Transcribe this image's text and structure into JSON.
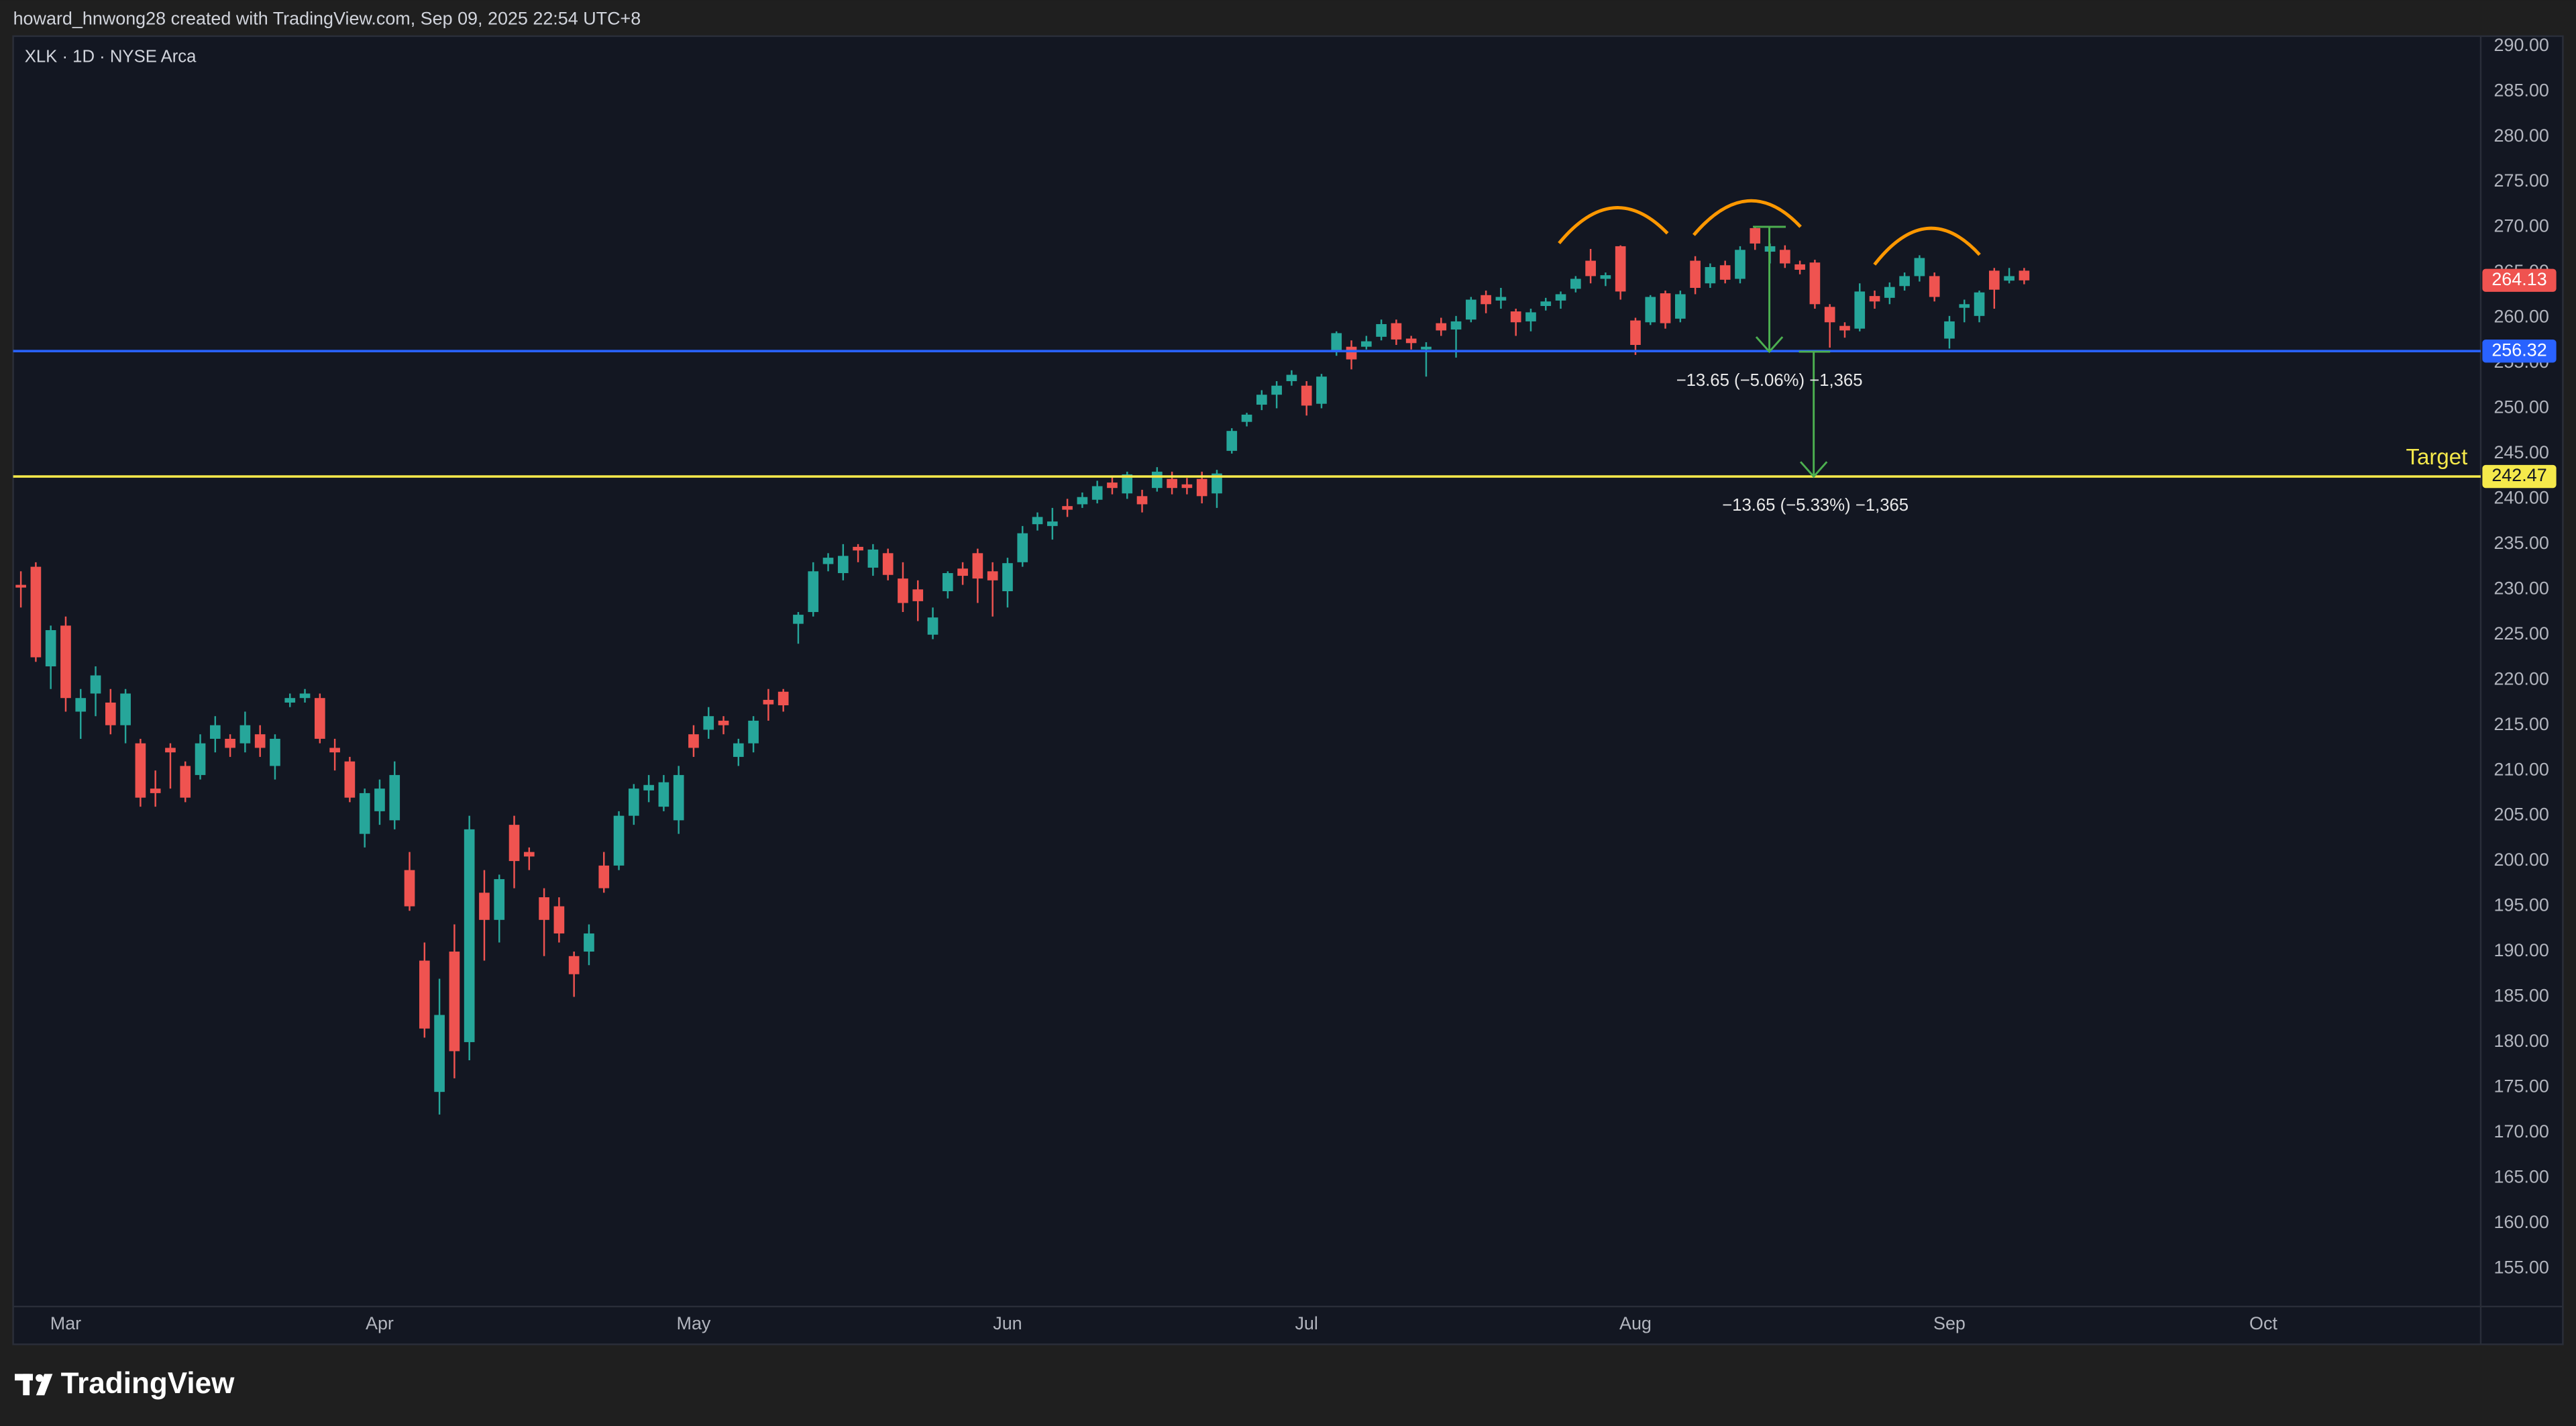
{
  "header": {
    "attribution": "howard_hnwong28 created with TradingView.com, Sep 09, 2025 22:54 UTC+8"
  },
  "footer": {
    "logo": "TradingView"
  },
  "chart_data": {
    "type": "candlestick",
    "symbol": "XLK · 1D · NYSE Arca",
    "up_color": "#26a69a",
    "down_color": "#ef5350",
    "categories": [
      null,
      null,
      null,
      "Mar",
      null,
      null,
      null,
      null,
      null,
      null,
      null,
      null,
      null,
      null,
      null,
      null,
      null,
      null,
      null,
      null,
      null,
      null,
      null,
      null,
      "Apr",
      null,
      null,
      null,
      null,
      null,
      null,
      null,
      null,
      null,
      null,
      null,
      null,
      null,
      null,
      null,
      null,
      null,
      null,
      null,
      null,
      "May",
      null,
      null,
      null,
      null,
      null,
      null,
      null,
      null,
      null,
      null,
      null,
      null,
      null,
      null,
      null,
      null,
      null,
      null,
      null,
      null,
      "Jun",
      null,
      null,
      null,
      null,
      null,
      null,
      null,
      null,
      null,
      null,
      null,
      null,
      null,
      null,
      null,
      null,
      null,
      null,
      null,
      "Jul",
      null,
      null,
      null,
      null,
      null,
      null,
      null,
      null,
      null,
      null,
      null,
      null,
      null,
      null,
      null,
      null,
      null,
      null,
      null,
      null,
      null,
      "Aug",
      null,
      null,
      null,
      null,
      null,
      null,
      null,
      null,
      null,
      null,
      null,
      null,
      null,
      null,
      null,
      null,
      null,
      null,
      null,
      null,
      "Sep",
      null,
      null,
      null,
      null,
      null,
      null,
      null,
      null,
      null,
      null,
      null,
      null,
      null,
      null,
      null,
      null,
      null,
      null,
      null,
      null,
      "Oct"
    ],
    "open": [
      230.5,
      232.5,
      221.5,
      226,
      216.5,
      218.5,
      217.5,
      215,
      213,
      208,
      212.5,
      210.5,
      209.5,
      213.5,
      213.5,
      213,
      214,
      210.5,
      217.5,
      218,
      218,
      212.5,
      211,
      203,
      205.5,
      204.5,
      199,
      189,
      174.5,
      190,
      180,
      196.5,
      193.5,
      204,
      201,
      196,
      195,
      189.5,
      190,
      199.5,
      199.5,
      205,
      207.8,
      206,
      204.5,
      214,
      214.5,
      215.5,
      211.5,
      213,
      217.8,
      218.7,
      226.2,
      227.5,
      232.8,
      231.8,
      234.7,
      232.4,
      234,
      231.2,
      230,
      225,
      229.8,
      232.3,
      234,
      232,
      229.8,
      233,
      237.2,
      237,
      239.2,
      239.4,
      239.9,
      241.8,
      240.6,
      240.3,
      241.2,
      242.2,
      241.6,
      242.2,
      240.6,
      245.3,
      248.5,
      250.4,
      251.5,
      253,
      252.5,
      250.5,
      256.2,
      256.8,
      256.8,
      257.9,
      259.4,
      257.7,
      256.5,
      259.4,
      258.7,
      259.8,
      262.5,
      261.9,
      260.7,
      259.6,
      261.3,
      261.9,
      263.2,
      266.3,
      264.3,
      267.9,
      259.7,
      259.5,
      262.7,
      259.9,
      266.3,
      263.8,
      265.8,
      264.3,
      269.9,
      267.3,
      267.5,
      265.9,
      266.1,
      261.2,
      259.1,
      258.8,
      262.4,
      262.2,
      263.5,
      264.6,
      264.6,
      257.7,
      261.1,
      260.2,
      265.2,
      264.1,
      265.2,
      null,
      null,
      null,
      null,
      null,
      null,
      null,
      null,
      null,
      null,
      null,
      null,
      null,
      null,
      null,
      null
    ],
    "high": [
      232,
      233,
      226,
      227,
      219,
      221.5,
      219,
      219,
      213.5,
      210,
      213,
      211,
      214,
      216,
      214,
      216.5,
      215,
      214,
      218.5,
      219,
      218.5,
      213.5,
      211.5,
      208,
      209,
      211,
      201,
      191,
      187,
      193,
      205,
      199,
      198.5,
      205,
      201.5,
      197,
      196,
      190,
      193,
      201,
      205.5,
      208.5,
      209.5,
      209.5,
      210.5,
      215,
      217,
      216,
      213.5,
      216,
      219,
      219,
      227.5,
      233,
      234,
      235,
      235,
      235,
      234.5,
      233,
      231,
      228,
      232,
      233,
      234.5,
      233,
      233.5,
      237,
      238.5,
      239,
      240,
      240.7,
      242,
      242.5,
      243,
      241,
      243.5,
      243,
      242.3,
      243,
      243.2,
      247.8,
      249.5,
      252,
      253,
      254.2,
      253,
      253.8,
      258.5,
      257.5,
      258,
      259.8,
      259.8,
      258,
      257.3,
      260,
      260.2,
      262.3,
      263,
      263.3,
      261,
      261,
      262.2,
      262.9,
      264.6,
      267.6,
      265,
      268,
      260,
      262.5,
      263,
      263,
      266.8,
      266,
      266.3,
      267.9,
      270,
      268.2,
      268,
      266.3,
      266.4,
      261.5,
      259.5,
      263.8,
      263,
      263.9,
      265,
      266.9,
      265,
      260.2,
      262,
      263,
      265.5,
      265.5,
      265.5,
      null,
      null,
      null,
      null,
      null,
      null,
      null,
      null,
      null,
      null,
      null,
      null,
      null,
      null,
      null,
      null
    ],
    "low": [
      228,
      222,
      219,
      216.5,
      213.5,
      216,
      214,
      213,
      206,
      206,
      208,
      206.5,
      209,
      212,
      211.5,
      212,
      211.5,
      209,
      217,
      217.5,
      213,
      210,
      206.5,
      201.5,
      204,
      203.5,
      194.5,
      180.5,
      172,
      176,
      178,
      189,
      191,
      197,
      199,
      189.5,
      191,
      185,
      188.5,
      196.5,
      199,
      204,
      206.5,
      205.5,
      203,
      211.5,
      213.5,
      214,
      210.5,
      212,
      215.5,
      216.5,
      224,
      227,
      232,
      231,
      233,
      231.5,
      231,
      227.5,
      226.5,
      224.5,
      229,
      230.5,
      228.5,
      227,
      228,
      232.5,
      236.5,
      235.5,
      238,
      239,
      239.5,
      240.5,
      240,
      238.5,
      240.8,
      240.5,
      240.5,
      239.5,
      239,
      245,
      248,
      249.8,
      250,
      252.5,
      249.2,
      250,
      255.8,
      254.3,
      256.5,
      257.5,
      257,
      256.5,
      253.5,
      258,
      255.6,
      259.5,
      260.5,
      261,
      258,
      258.5,
      260.8,
      261,
      262.8,
      263.8,
      263.5,
      262,
      255.9,
      259.2,
      258.8,
      259.5,
      262.6,
      263.3,
      263.8,
      263.8,
      267.5,
      266,
      265.5,
      264.8,
      261,
      256.7,
      257.8,
      258.5,
      261,
      261.5,
      263,
      264,
      261.8,
      256.6,
      259.5,
      259.5,
      261,
      263.8,
      263.7,
      null,
      null,
      null,
      null,
      null,
      null,
      null,
      null,
      null,
      null,
      null,
      null,
      null,
      null,
      null,
      null
    ],
    "close": [
      230.2,
      222.5,
      225.5,
      218,
      218,
      220.5,
      215,
      218.5,
      207,
      207.5,
      212,
      207,
      213,
      215,
      212.5,
      215,
      212.5,
      213.5,
      218,
      218.5,
      213.5,
      212,
      207,
      207.5,
      208,
      209.5,
      195,
      181.5,
      183,
      179,
      203.5,
      193.5,
      198,
      200,
      200.5,
      193.5,
      192,
      187.5,
      192,
      197,
      205,
      208,
      208.4,
      208.7,
      209.5,
      212.5,
      216,
      215,
      213,
      215.5,
      217.3,
      217.2,
      227.2,
      232,
      233.5,
      233.7,
      234.3,
      234.4,
      231.6,
      228.5,
      228.7,
      226.9,
      231.8,
      231.5,
      231.2,
      231,
      232.9,
      236.2,
      238,
      237.5,
      238.8,
      240.2,
      241.4,
      241.2,
      242.7,
      239.4,
      243,
      241.2,
      241.2,
      240.3,
      242.8,
      247.5,
      249.3,
      251.5,
      252.5,
      253.7,
      250.3,
      253.5,
      258.3,
      255.4,
      257.4,
      259.3,
      257.6,
      257.2,
      256.8,
      258.6,
      259.6,
      262,
      261.5,
      262.3,
      259.5,
      260.6,
      261.8,
      262.6,
      264.3,
      264.6,
      264.7,
      262.9,
      257,
      262.3,
      259.4,
      262.6,
      263.3,
      265.6,
      264.2,
      267.5,
      268.2,
      267.9,
      266,
      265.3,
      261.5,
      259.5,
      258.6,
      262.9,
      261.8,
      263.4,
      264.6,
      266.6,
      262.3,
      259.6,
      261.5,
      262.8,
      263.1,
      264.6,
      264.13,
      null,
      null,
      null,
      null,
      null,
      null,
      null,
      null,
      null,
      null,
      null,
      null,
      null,
      null,
      null,
      null
    ],
    "ylim": [
      150.8,
      291.1
    ],
    "yticks": [
      {
        "value": 155,
        "label": "155.00"
      },
      {
        "value": 160,
        "label": "160.00"
      },
      {
        "value": 165,
        "label": "165.00"
      },
      {
        "value": 170,
        "label": "170.00"
      },
      {
        "value": 175,
        "label": "175.00"
      },
      {
        "value": 180,
        "label": "180.00"
      },
      {
        "value": 185,
        "label": "185.00"
      },
      {
        "value": 190,
        "label": "190.00"
      },
      {
        "value": 195,
        "label": "195.00"
      },
      {
        "value": 200,
        "label": "200.00"
      },
      {
        "value": 205,
        "label": "205.00"
      },
      {
        "value": 210,
        "label": "210.00"
      },
      {
        "value": 215,
        "label": "215.00"
      },
      {
        "value": 220,
        "label": "220.00"
      },
      {
        "value": 225,
        "label": "225.00"
      },
      {
        "value": 230,
        "label": "230.00"
      },
      {
        "value": 235,
        "label": "235.00"
      },
      {
        "value": 240,
        "label": "240.00"
      },
      {
        "value": 245,
        "label": "245.00"
      },
      {
        "value": 250,
        "label": "250.00"
      },
      {
        "value": 255,
        "label": "255.00"
      },
      {
        "value": 260,
        "label": "260.00"
      },
      {
        "value": 265,
        "label": "265.00"
      },
      {
        "value": 270,
        "label": "270.00"
      },
      {
        "value": 275,
        "label": "275.00"
      },
      {
        "value": 280,
        "label": "280.00"
      },
      {
        "value": 285,
        "label": "285.00"
      },
      {
        "value": 290,
        "label": "290.00"
      }
    ],
    "price_lines": [
      {
        "value": 256.32,
        "color": "#2962ff"
      },
      {
        "value": 242.47,
        "color": "#f5e94b",
        "name": "Target"
      }
    ],
    "annotations": [
      "−13.65 (−5.06%) −1,365",
      "−13.65 (−5.33%) −1,365"
    ]
  }
}
